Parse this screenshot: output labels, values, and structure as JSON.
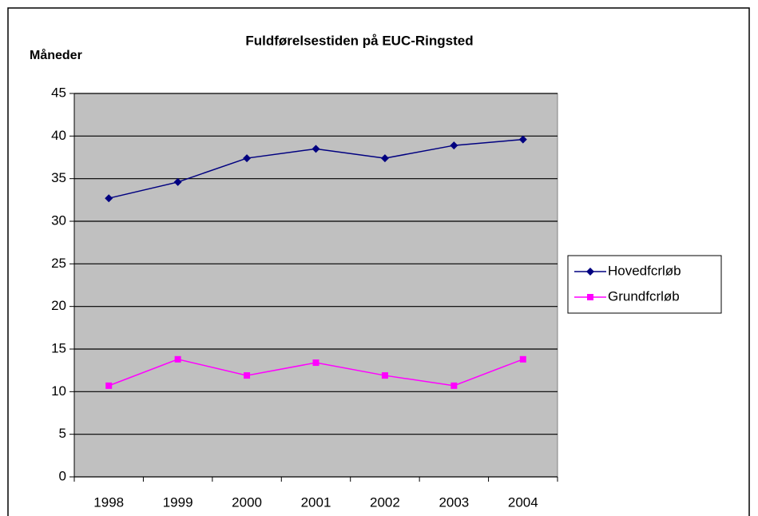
{
  "chart_data": {
    "type": "line",
    "title": "Fuldførelsestiden på EUC-Ringsted",
    "y_label": "Måneder",
    "categories": [
      "1998",
      "1999",
      "2000",
      "2001",
      "2002",
      "2003",
      "2004"
    ],
    "series": [
      {
        "name": "Hovedfcrløb",
        "color": "#000080",
        "marker": "diamond",
        "values": [
          32.7,
          34.6,
          37.4,
          38.5,
          37.4,
          38.9,
          39.6
        ]
      },
      {
        "name": "Grundfcrløb",
        "color": "#ff00ff",
        "marker": "square",
        "values": [
          10.7,
          13.8,
          11.9,
          13.4,
          11.9,
          10.7,
          13.8
        ]
      }
    ],
    "ylim": [
      0,
      45
    ],
    "yticks": [
      0,
      5,
      10,
      15,
      20,
      25,
      30,
      35,
      40,
      45
    ],
    "grid": true,
    "plot_background": "#c0c0c0",
    "legend": "right"
  }
}
